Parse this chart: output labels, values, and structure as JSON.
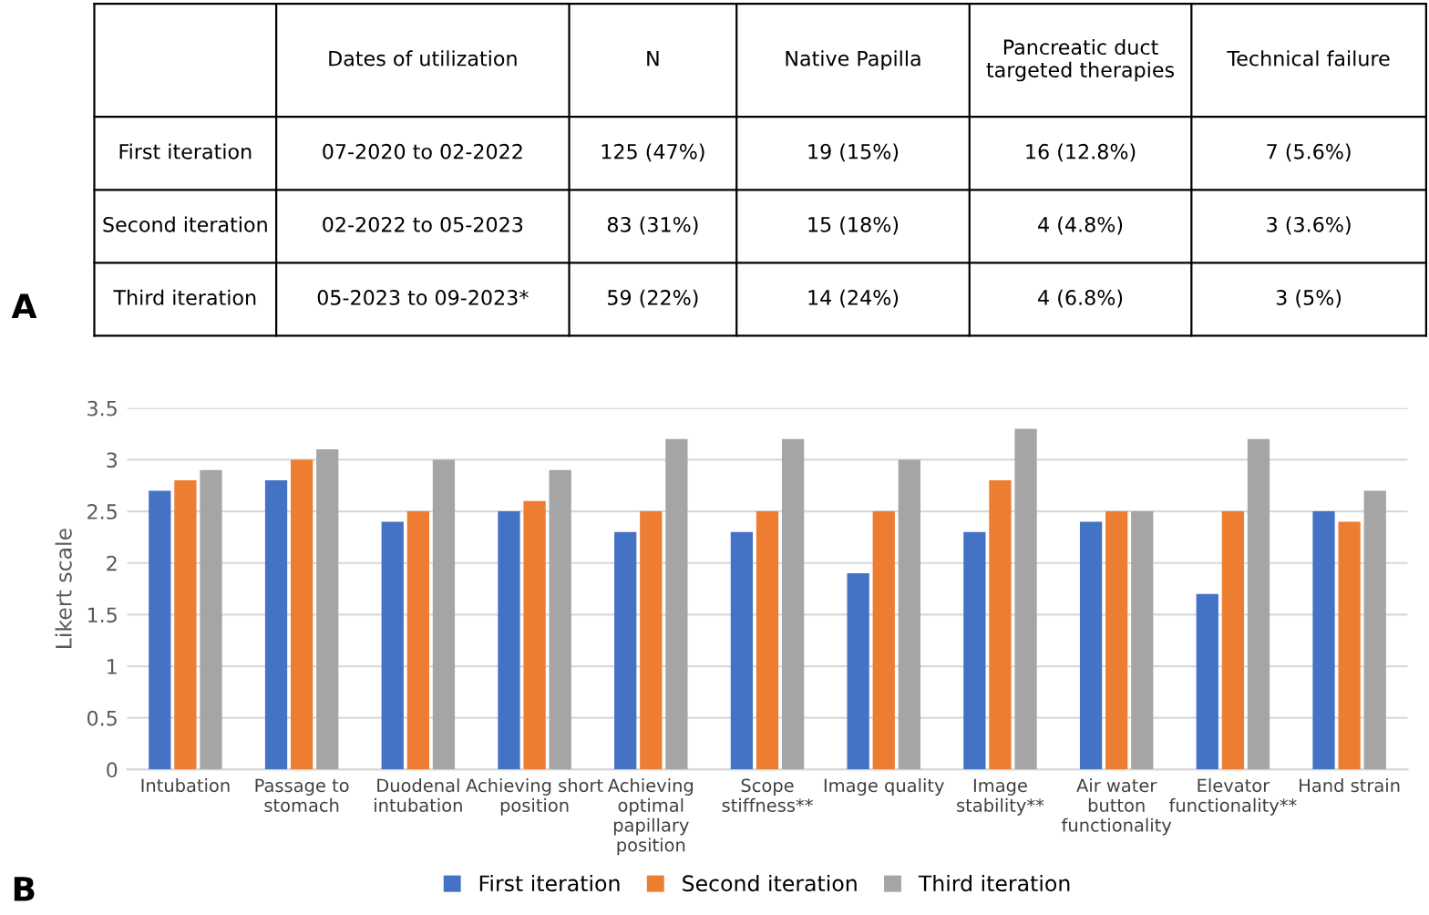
{
  "chart_data": [
    {
      "type": "other",
      "annotations": [
        "A"
      ],
      "categories": [
        "Dates of utilization",
        "N",
        "Native Papilla",
        "Pancreatic duct\ntargeted therapies",
        "Technical failure"
      ],
      "y_categories": [
        "First iteration",
        "Second iteration",
        "Third iteration"
      ],
      "cell_labels": [
        [
          "07-2020 to 02-2022",
          "125 (47%)",
          "19 (15%)",
          "16 (12.8%)",
          "7 (5.6%)"
        ],
        [
          "02-2022 to 05-2023",
          "83 (31%)",
          "15 (18%)",
          "4 (4.8%)",
          "3 (3.6%)"
        ],
        [
          "05-2023 to 09-2023*",
          "59 (22%)",
          "14 (24%)",
          "4 (6.8%)",
          "3 (5%)"
        ]
      ]
    },
    {
      "type": "bar",
      "ylabel": "Likert scale",
      "annotations": [
        "B"
      ],
      "categories": [
        "Intubation",
        "Passage to\nstomach",
        "Duodenal\nintubation",
        "Achieving short\nposition",
        "Achieving\noptimal\npapillary\nposition",
        "Scope\nstiffness**",
        "Image quality",
        "Image\nstability**",
        "Air water\nbutton\nfunctionality",
        "Elevator\nfunctionality**",
        "Hand strain"
      ],
      "series": [
        {
          "name": "First iteration",
          "color": "#4472c4",
          "values": [
            2.7,
            2.8,
            2.4,
            2.5,
            2.3,
            2.3,
            1.9,
            2.3,
            2.4,
            1.7,
            2.5
          ]
        },
        {
          "name": "Second iteration",
          "color": "#ed7d31",
          "values": [
            2.8,
            3.0,
            2.5,
            2.6,
            2.5,
            2.5,
            2.5,
            2.8,
            2.5,
            2.5,
            2.4
          ]
        },
        {
          "name": "Third iteration",
          "color": "#a5a5a5",
          "values": [
            2.9,
            3.1,
            3.0,
            2.9,
            3.2,
            3.2,
            3.0,
            3.3,
            2.5,
            3.2,
            2.7
          ]
        }
      ],
      "ylim": [
        0,
        3.5
      ],
      "yticks": [
        0,
        0.5,
        1,
        1.5,
        2,
        2.5,
        3,
        3.5
      ],
      "grid": "y",
      "legend": "bottom"
    }
  ]
}
